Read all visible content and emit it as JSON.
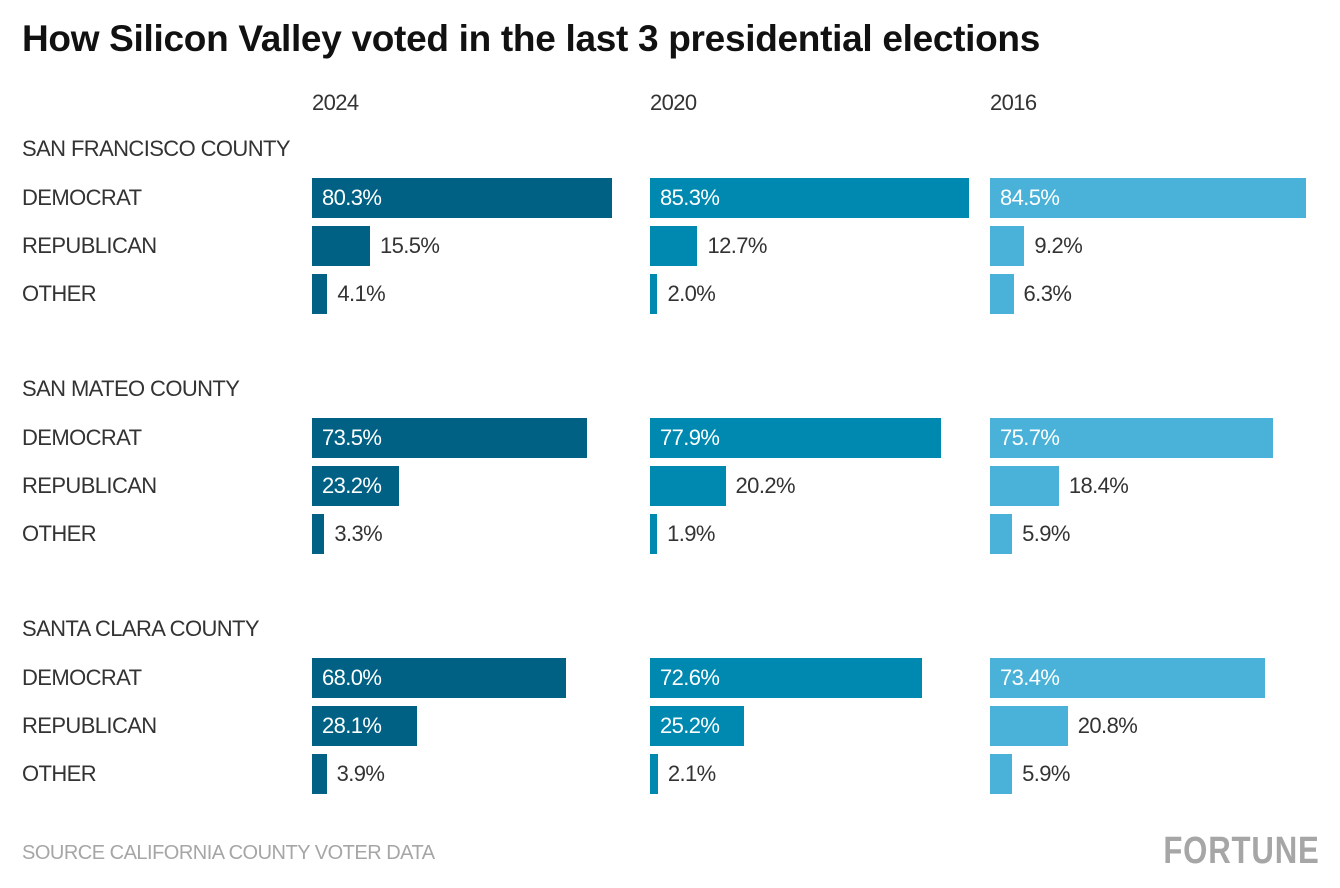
{
  "chart_data": {
    "type": "bar",
    "orientation": "horizontal",
    "title": "How Silicon Valley voted in the last 3 presidential elections",
    "years": [
      "2024",
      "2020",
      "2016"
    ],
    "categories": [
      "DEMOCRAT",
      "REPUBLICAN",
      "OTHER"
    ],
    "colors": {
      "2024": "#006184",
      "2020": "#0089b0",
      "2016": "#4ab2d8"
    },
    "groups": [
      {
        "name": "SAN FRANCISCO COUNTY",
        "values": {
          "2024": [
            80.3,
            15.5,
            4.1
          ],
          "2020": [
            85.3,
            12.7,
            2.0
          ],
          "2016": [
            84.5,
            9.2,
            6.3
          ]
        }
      },
      {
        "name": "SAN MATEO COUNTY",
        "values": {
          "2024": [
            73.5,
            23.2,
            3.3
          ],
          "2020": [
            77.9,
            20.2,
            1.9
          ],
          "2016": [
            75.7,
            18.4,
            5.9
          ]
        }
      },
      {
        "name": "SANTA CLARA COUNTY",
        "values": {
          "2024": [
            68.0,
            28.1,
            3.9
          ],
          "2020": [
            72.6,
            25.2,
            2.1
          ],
          "2016": [
            73.4,
            20.8,
            5.9
          ]
        }
      }
    ],
    "value_suffix": "%",
    "grid": false
  },
  "footer": {
    "source": "SOURCE CALIFORNIA COUNTY VOTER DATA",
    "logo": "FORTUNE"
  }
}
